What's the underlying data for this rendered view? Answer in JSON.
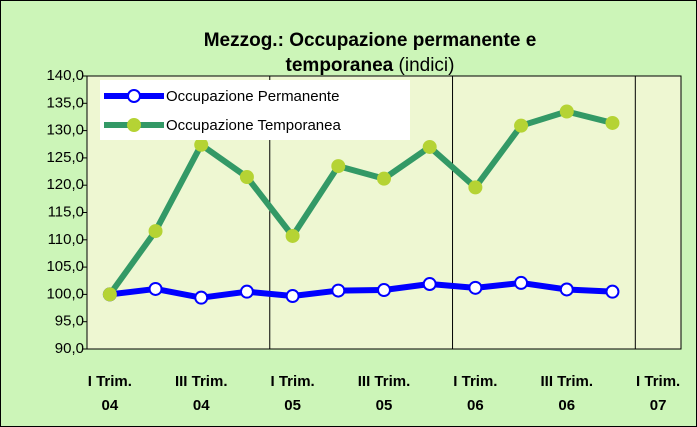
{
  "chart_data": {
    "type": "line",
    "title": [
      "Mezzog.: Occupazione permanente e",
      "temporanea"
    ],
    "subtitle": "(indici)",
    "categories": [
      "I Trim. 04",
      null,
      "III Trim. 04",
      null,
      "I Trim. 05",
      null,
      "III Trim. 05",
      null,
      "I Trim. 06",
      null,
      "III Trim. 06",
      null,
      "I Trim. 07"
    ],
    "series": [
      {
        "name": "Occupazione Permanente",
        "color": "#0000ff",
        "marker": "#ffffff",
        "values": [
          100.0,
          101.0,
          99.4,
          100.5,
          99.7,
          100.7,
          100.8,
          101.9,
          101.2,
          102.1,
          100.9,
          100.5,
          null
        ]
      },
      {
        "name": "Occupazione Temporanea",
        "color": "#339966",
        "marker": "#b5d334",
        "values": [
          100.0,
          111.6,
          127.4,
          121.5,
          110.7,
          123.5,
          121.2,
          127.0,
          119.6,
          130.9,
          133.5,
          131.4,
          null
        ]
      }
    ],
    "ylim": [
      90,
      140
    ],
    "yticks": [
      {
        "value": 90,
        "label": "90,0"
      },
      {
        "value": 95,
        "label": "95,0"
      },
      {
        "value": 100,
        "label": "100,0"
      },
      {
        "value": 105,
        "label": "105,0"
      },
      {
        "value": 110,
        "label": "110,0"
      },
      {
        "value": 115,
        "label": "115,0"
      },
      {
        "value": 120,
        "label": "120,0"
      },
      {
        "value": 125,
        "label": "125,0"
      },
      {
        "value": 130,
        "label": "130,0"
      },
      {
        "value": 135,
        "label": "135,0"
      },
      {
        "value": 140,
        "label": "140,0"
      }
    ],
    "legend": "top-left"
  }
}
